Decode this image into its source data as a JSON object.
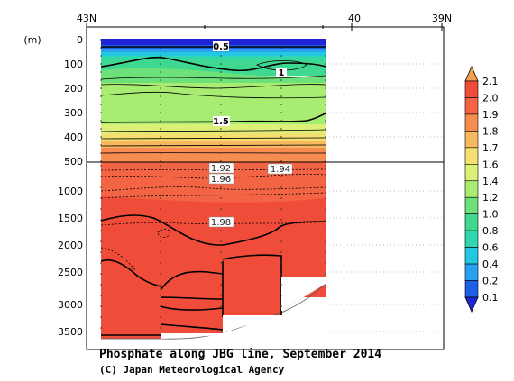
{
  "chart_data": {
    "type": "heatmap",
    "title": "Phosphate along JBG line, September 2014",
    "credit": "(C) Japan Meteorological Agency",
    "ylabel": "(m)",
    "x_ticks": [
      "43N",
      "40",
      "39N"
    ],
    "y_ticks_upper": [
      "0",
      "100",
      "200",
      "300",
      "400",
      "500"
    ],
    "y_ticks_lower": [
      "1000",
      "1500",
      "2000",
      "2500",
      "3000",
      "3500"
    ],
    "colorbar_levels": [
      "0.1",
      "0.2",
      "0.4",
      "0.6",
      "0.8",
      "1.0",
      "1.2",
      "1.4",
      "1.6",
      "1.7",
      "1.8",
      "1.9",
      "2.0",
      "2.1"
    ],
    "colorbar_colors": [
      "#1f24d6",
      "#1f5fe8",
      "#2aa0f0",
      "#22c8e0",
      "#2fd6b0",
      "#3fd890",
      "#6ee07a",
      "#a8ec72",
      "#dcf078",
      "#f3e070",
      "#f8b860",
      "#f78c50",
      "#f26444",
      "#f04c3a",
      "#f5a050"
    ],
    "contour_labels": [
      "0.5",
      "1",
      "1.5",
      "1.92",
      "1.94",
      "1.96",
      "1.98"
    ]
  }
}
